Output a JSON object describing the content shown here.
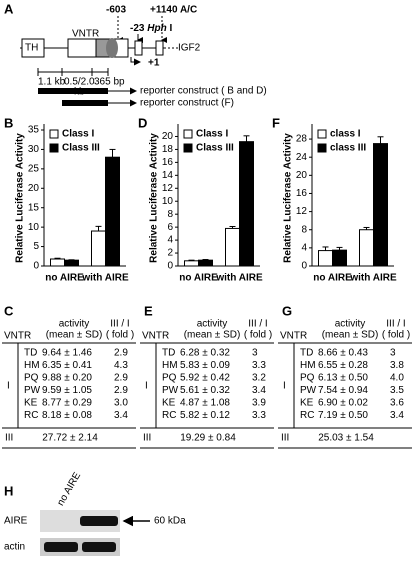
{
  "panel_a": {
    "label": "A",
    "genes": [
      "TH",
      "VNTR",
      "IGF2"
    ],
    "sites": [
      "-603",
      "-23",
      "Hph",
      "I",
      "+1140 A/C"
    ],
    "start": "+1",
    "scale": [
      "1.1 kb",
      "0.5/2.0",
      "kb",
      "365 bp"
    ],
    "constructs": [
      "reporter construct ( B and D)",
      "reporter construct (F)"
    ]
  },
  "chart_data": [
    {
      "type": "bar",
      "panel": "B",
      "ylabel": "Relative Luciferase Activity",
      "categories": [
        "no AIRE",
        "with AIRE"
      ],
      "ylim": [
        0,
        35
      ],
      "yticks": [
        0,
        5,
        10,
        15,
        20,
        25,
        30,
        35
      ],
      "series": [
        {
          "name": "Class I",
          "color": "#ffffff",
          "values": [
            1.8,
            9
          ],
          "errors": [
            0.2,
            1.2
          ]
        },
        {
          "name": "Class III",
          "color": "#000000",
          "values": [
            1.5,
            28
          ],
          "errors": [
            0.1,
            2
          ]
        }
      ]
    },
    {
      "type": "bar",
      "panel": "D",
      "ylabel": "Relative Luciferase Activity",
      "categories": [
        "no AIRE",
        "with AIRE"
      ],
      "ylim": [
        0,
        21
      ],
      "yticks": [
        0,
        2,
        4,
        6,
        8,
        10,
        12,
        14,
        16,
        18,
        20
      ],
      "series": [
        {
          "name": "Class I",
          "color": "#ffffff",
          "values": [
            0.8,
            5.8
          ],
          "errors": [
            0.1,
            0.3
          ]
        },
        {
          "name": "Class III",
          "color": "#000000",
          "values": [
            0.9,
            19.2
          ],
          "errors": [
            0.1,
            0.9
          ]
        }
      ]
    },
    {
      "type": "bar",
      "panel": "F",
      "ylabel": "Relative Luciferase Activity",
      "categories": [
        "no AIRE",
        "with AIRE"
      ],
      "ylim": [
        0,
        30
      ],
      "yticks": [
        0,
        4,
        8,
        12,
        16,
        20,
        24,
        28
      ],
      "series": [
        {
          "name": "class I",
          "color": "#ffffff",
          "values": [
            3.4,
            8
          ],
          "errors": [
            0.8,
            0.5
          ]
        },
        {
          "name": "class III",
          "color": "#000000",
          "values": [
            3.5,
            27
          ],
          "errors": [
            0.6,
            1.5
          ]
        }
      ]
    }
  ],
  "tables": [
    {
      "panel": "C",
      "header": [
        "VNTR",
        "activity",
        "(mean ± SD)",
        "III / I",
        "( fold )"
      ],
      "group": "I",
      "rows": [
        [
          "TD",
          "9.64 ± 1.46",
          "2.9"
        ],
        [
          "HM",
          "6.35 ± 0.41",
          "4.3"
        ],
        [
          "PQ",
          "9.88 ± 0.20",
          "2.9"
        ],
        [
          "PW",
          "9.59 ± 1.05",
          "2.9"
        ],
        [
          "KE",
          "8.77 ± 0.29",
          "3.0"
        ],
        [
          "RC",
          "8.18 ± 0.08",
          "3.4"
        ]
      ],
      "last": [
        "III",
        "27.72 ± 2.14"
      ]
    },
    {
      "panel": "E",
      "header": [
        "VNTR",
        "activity",
        "(mean ± SD)",
        "III / I",
        "( fold )"
      ],
      "group": "I",
      "rows": [
        [
          "TD",
          "6.28 ± 0.32",
          "3"
        ],
        [
          "HM",
          "5.83 ± 0.09",
          "3.3"
        ],
        [
          "PQ",
          "5.92 ± 0.42",
          "3.2"
        ],
        [
          "PW",
          "5.61 ± 0.32",
          "3.4"
        ],
        [
          "KE",
          "4.87 ± 1.08",
          "3.9"
        ],
        [
          "RC",
          "5.82 ± 0.12",
          "3.3"
        ]
      ],
      "last": [
        "III",
        "19.29 ± 0.84"
      ]
    },
    {
      "panel": "G",
      "header": [
        "VNTR",
        "activity",
        "(mean ± SD)",
        "III / I",
        "( fold )"
      ],
      "group": "I",
      "rows": [
        [
          "TD",
          "8.66 ± 0.43",
          "3"
        ],
        [
          "HM",
          "6.55 ± 0.28",
          "3.8"
        ],
        [
          "PQ",
          "6.13 ± 0.50",
          "4.0"
        ],
        [
          "PW",
          "7.54 ± 0.94",
          "3.5"
        ],
        [
          "KE",
          "6.90 ± 0.02",
          "3.6"
        ],
        [
          "RC",
          "7.19 ± 0.50",
          "3.4"
        ]
      ],
      "last": [
        "III",
        "25.03 ± 1.54"
      ]
    }
  ],
  "panel_h": {
    "label": "H",
    "lane": "no AIRE",
    "rows": [
      "AIRE",
      "actin"
    ],
    "size": "60 kDa"
  }
}
